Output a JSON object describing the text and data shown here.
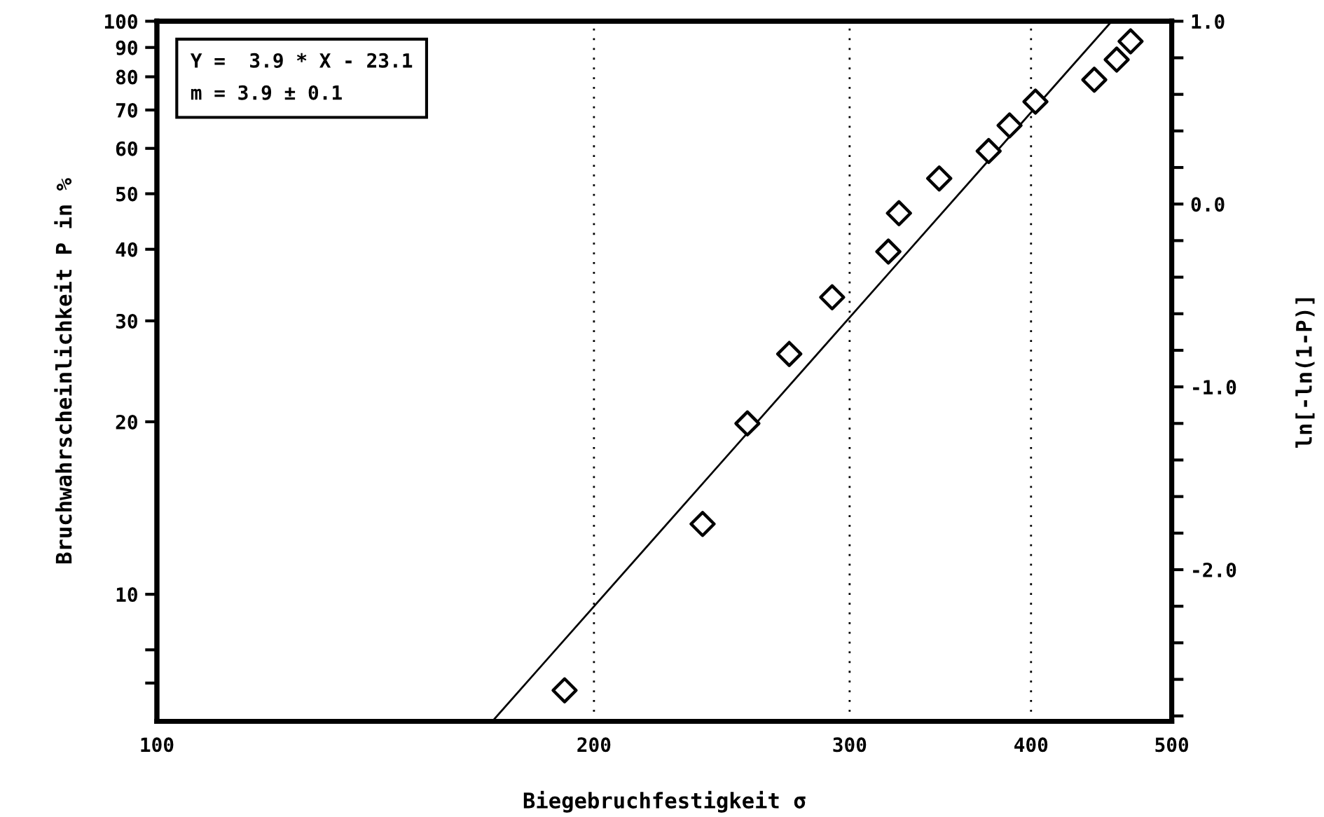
{
  "chart_data": {
    "type": "scatter",
    "xlabel": "Biegebruchfestigkeit σ",
    "ylabel": "Bruchwahrscheinlichkeit P in %",
    "y2label": "ln[-ln(1-P)]",
    "annotations": [
      "Y =  3.9 * X - 23.1",
      "m = 3.9 ± 0.1"
    ],
    "log": "xy",
    "xlim": [
      100,
      500
    ],
    "xticks": [
      100,
      200,
      300,
      400,
      500
    ],
    "ylim": [
      6.0,
      100
    ],
    "yticks": [
      {
        "value": 7,
        "label": null
      },
      {
        "value": 8,
        "label": null
      },
      10,
      20,
      30,
      40,
      50,
      60,
      70,
      80,
      90,
      100
    ],
    "y2lim": [
      -2.83,
      1.0
    ],
    "y2ticks": [
      {
        "value": -2.8,
        "label": null
      },
      {
        "value": -2.6,
        "label": null
      },
      {
        "value": -2.4,
        "label": null
      },
      {
        "value": -2.2,
        "label": null
      },
      {
        "value": -2.0,
        "label": "-2.0"
      },
      {
        "value": -1.8,
        "label": null
      },
      {
        "value": -1.6,
        "label": null
      },
      {
        "value": -1.4,
        "label": null
      },
      {
        "value": -1.2,
        "label": null
      },
      {
        "value": -1.0,
        "label": "-1.0"
      },
      {
        "value": -0.8,
        "label": null
      },
      {
        "value": -0.6,
        "label": null
      },
      {
        "value": -0.4,
        "label": null
      },
      {
        "value": -0.2,
        "label": null
      },
      {
        "value": 0.0,
        "label": "0.0"
      },
      {
        "value": 0.2,
        "label": null
      },
      {
        "value": 0.4,
        "label": null
      },
      {
        "value": 0.6,
        "label": null
      },
      {
        "value": 0.8,
        "label": null
      },
      {
        "value": 1.0,
        "label": "1.0"
      }
    ],
    "grid": "x",
    "series": [
      {
        "type": "scatter",
        "axis": "y2",
        "color": "#000000",
        "marker": "diamond",
        "x": [
          190.9,
          237.6,
          255.1,
          272.6,
          291.8,
          319.0,
          324.4,
          345.8,
          374.0,
          386.6,
          402.8,
          442.2,
          458.2,
          468.4
        ],
        "values": [
          -2.66,
          -1.75,
          -1.2,
          -0.82,
          -0.51,
          -0.26,
          -0.05,
          0.14,
          0.29,
          0.43,
          0.56,
          0.68,
          0.79,
          0.89
        ]
      },
      {
        "type": "line",
        "axis": "y2",
        "color": "#000000",
        "marker": "none",
        "line_style": "solid",
        "x": [
          170.2,
          454.6
        ],
        "values": [
          -2.83,
          1.0
        ]
      }
    ]
  }
}
